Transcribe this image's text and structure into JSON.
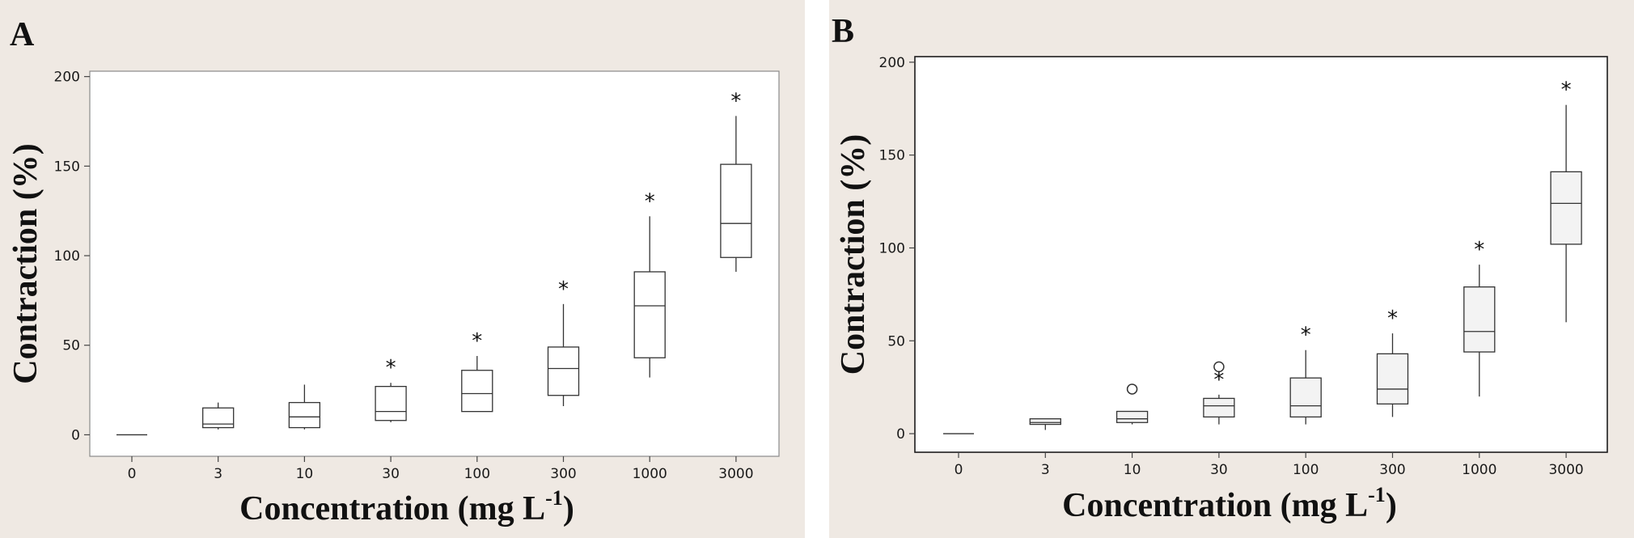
{
  "chart_data": [
    {
      "type": "box",
      "panel_label": "A",
      "xlabel": "Concentration (mg L",
      "xlabel_superscript": "-1",
      "xlabel_suffix": ")",
      "ylabel": "Contraction (%)",
      "categories": [
        "0",
        "3",
        "10",
        "30",
        "100",
        "300",
        "1000",
        "3000"
      ],
      "ylim": [
        -12,
        203
      ],
      "yticks": [
        0,
        50,
        100,
        150,
        200
      ],
      "boxes": [
        {
          "min": 0,
          "q1": 0,
          "median": 0,
          "q3": 0,
          "max": 0,
          "significant": false,
          "outliers": []
        },
        {
          "min": 3,
          "q1": 4,
          "median": 6,
          "q3": 15,
          "max": 18,
          "significant": false,
          "outliers": []
        },
        {
          "min": 3,
          "q1": 4,
          "median": 10,
          "q3": 18,
          "max": 28,
          "significant": false,
          "outliers": []
        },
        {
          "min": 7,
          "q1": 8,
          "median": 13,
          "q3": 27,
          "max": 29,
          "significant": true,
          "outliers": []
        },
        {
          "min": 13,
          "q1": 13,
          "median": 23,
          "q3": 36,
          "max": 44,
          "significant": true,
          "outliers": []
        },
        {
          "min": 16,
          "q1": 22,
          "median": 37,
          "q3": 49,
          "max": 73,
          "significant": true,
          "outliers": []
        },
        {
          "min": 32,
          "q1": 43,
          "median": 72,
          "q3": 91,
          "max": 122,
          "significant": true,
          "outliers": []
        },
        {
          "min": 91,
          "q1": 99,
          "median": 118,
          "q3": 151,
          "max": 178,
          "significant": true,
          "outliers": []
        }
      ]
    },
    {
      "type": "box",
      "panel_label": "B",
      "xlabel": "Concentration (mg L",
      "xlabel_superscript": "-1",
      "xlabel_suffix": ")",
      "ylabel": "Contraction (%)",
      "categories": [
        "0",
        "3",
        "10",
        "30",
        "100",
        "300",
        "1000",
        "3000"
      ],
      "ylim": [
        -10,
        203
      ],
      "yticks": [
        0,
        50,
        100,
        150,
        200
      ],
      "boxes": [
        {
          "min": 0,
          "q1": 0,
          "median": 0,
          "q3": 0,
          "max": 0,
          "significant": false,
          "outliers": []
        },
        {
          "min": 2,
          "q1": 5,
          "median": 6,
          "q3": 8,
          "max": 8,
          "significant": false,
          "outliers": []
        },
        {
          "min": 5,
          "q1": 6,
          "median": 8,
          "q3": 12,
          "max": 12,
          "significant": false,
          "outliers": [
            24
          ]
        },
        {
          "min": 5,
          "q1": 9,
          "median": 15,
          "q3": 19,
          "max": 21,
          "significant": true,
          "outliers": [
            36
          ]
        },
        {
          "min": 5,
          "q1": 9,
          "median": 15,
          "q3": 30,
          "max": 45,
          "significant": true,
          "outliers": []
        },
        {
          "min": 9,
          "q1": 16,
          "median": 24,
          "q3": 43,
          "max": 54,
          "significant": true,
          "outliers": []
        },
        {
          "min": 20,
          "q1": 44,
          "median": 55,
          "q3": 79,
          "max": 91,
          "significant": true,
          "outliers": []
        },
        {
          "min": 60,
          "q1": 102,
          "median": 124,
          "q3": 141,
          "max": 177,
          "significant": true,
          "outliers": []
        }
      ]
    }
  ]
}
